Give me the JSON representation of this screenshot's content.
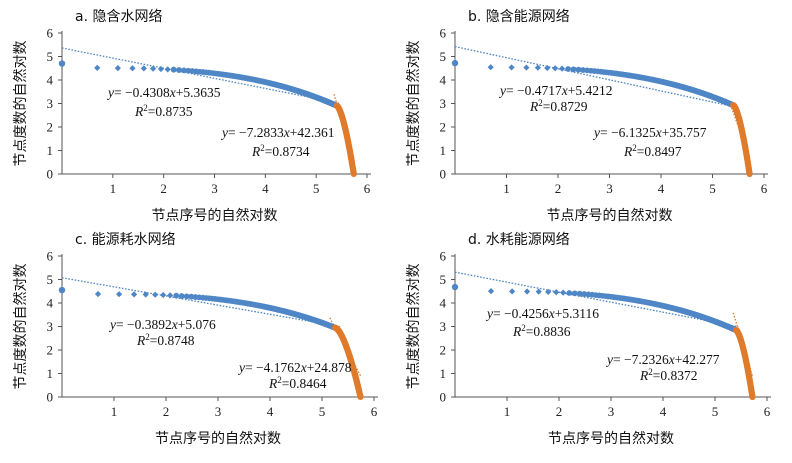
{
  "chart_data": [
    {
      "type": "scatter",
      "title": "a. 隐含水网络",
      "xlabel": "节点序号的自然对数",
      "ylabel": "节点度数的自然对数",
      "xlim": [
        0,
        6
      ],
      "ylim": [
        0,
        6
      ],
      "xticks": [
        "1",
        "2",
        "3",
        "4",
        "5",
        "6"
      ],
      "yticks": [
        "0",
        "1",
        "2",
        "3",
        "4",
        "5",
        "6"
      ],
      "head_max_y": 4.7,
      "mid_start_y": 4.53,
      "tail_start_y": 2.91,
      "threshold_x": 5.4,
      "max_x": 5.74,
      "fits": [
        {
          "slope": -0.4308,
          "intercept": 5.3635,
          "x_range": [
            0,
            5.45
          ],
          "equation": "y= −0.4308x+5.3635",
          "r2": "R²=0.8735"
        },
        {
          "slope": -7.2833,
          "intercept": 42.361,
          "x_range": [
            5.35,
            5.74
          ],
          "equation": "y= −7.2833x+42.361",
          "r2": "R²=0.8734"
        }
      ]
    },
    {
      "type": "scatter",
      "title": "b. 隐含能源网络",
      "xlabel": "节点序号的自然对数",
      "ylabel": "节点度数的自然对数",
      "xlim": [
        0,
        6
      ],
      "ylim": [
        0,
        6
      ],
      "xticks": [
        "1",
        "2",
        "3",
        "4",
        "5",
        "6"
      ],
      "yticks": [
        "0",
        "1",
        "2",
        "3",
        "4",
        "5",
        "6"
      ],
      "head_max_y": 4.72,
      "mid_start_y": 4.56,
      "tail_start_y": 2.93,
      "threshold_x": 5.4,
      "max_x": 5.72,
      "fits": [
        {
          "slope": -0.4717,
          "intercept": 5.4212,
          "x_range": [
            0,
            5.45
          ],
          "equation": "y= −0.4717x+5.4212",
          "r2": "R²=0.8729"
        },
        {
          "slope": -6.1325,
          "intercept": 35.757,
          "x_range": [
            5.35,
            5.72
          ],
          "equation": "y= −6.1325x+35.757",
          "r2": "R²=0.8497"
        }
      ]
    },
    {
      "type": "scatter",
      "title": "c. 能源耗水网络",
      "xlabel": "节点序号的自然对数",
      "ylabel": "节点度数的自然对数",
      "xlim": [
        0,
        6
      ],
      "ylim": [
        0,
        6
      ],
      "xticks": [
        "1",
        "2",
        "3",
        "4",
        "5",
        "6"
      ],
      "yticks": [
        "0",
        "1",
        "2",
        "3",
        "4",
        "5",
        "6"
      ],
      "head_max_y": 4.55,
      "mid_start_y": 4.4,
      "tail_start_y": 2.95,
      "threshold_x": 5.25,
      "max_x": 5.74,
      "fits": [
        {
          "slope": -0.3892,
          "intercept": 5.076,
          "x_range": [
            0,
            5.35
          ],
          "equation": "y= −0.3892x+5.076",
          "r2": "R²=0.8748"
        },
        {
          "slope": -4.1762,
          "intercept": 24.878,
          "x_range": [
            5.15,
            5.74
          ],
          "equation": "y= −4.1762x+24.878",
          "r2": "R²=0.8464"
        }
      ]
    },
    {
      "type": "scatter",
      "title": "d. 水耗能源网络",
      "xlabel": "节点序号的自然对数",
      "ylabel": "节点度数的自然对数",
      "xlim": [
        0,
        6
      ],
      "ylim": [
        0,
        6
      ],
      "xticks": [
        "1",
        "2",
        "3",
        "4",
        "5",
        "6"
      ],
      "yticks": [
        "0",
        "1",
        "2",
        "3",
        "4",
        "5",
        "6"
      ],
      "head_max_y": 4.68,
      "mid_start_y": 4.52,
      "tail_start_y": 2.85,
      "threshold_x": 5.4,
      "max_x": 5.72,
      "fits": [
        {
          "slope": -0.4256,
          "intercept": 5.3116,
          "x_range": [
            0,
            5.45
          ],
          "equation": "y= −0.4256x+5.3116",
          "r2": "R²=0.8836"
        },
        {
          "slope": -7.2326,
          "intercept": 42.277,
          "x_range": [
            5.35,
            5.72
          ],
          "equation": "y= −7.2326x+42.277",
          "r2": "R²=0.8372"
        }
      ]
    }
  ],
  "colors": {
    "main_series": "#4f86c6",
    "tail_series": "#e07b2c",
    "fit_main": "#4f86c6",
    "fit_tail": "#e07b2c",
    "axis": "#555555"
  }
}
